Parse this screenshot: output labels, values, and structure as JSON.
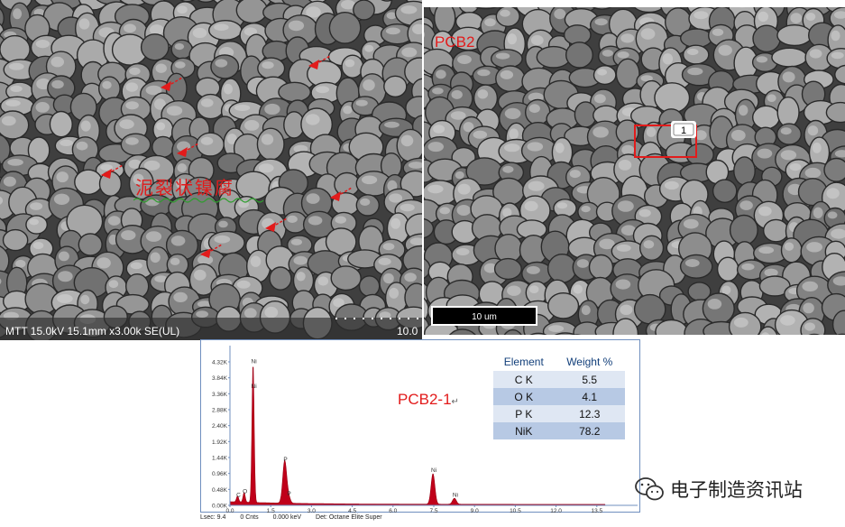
{
  "left_image": {
    "info_bar": "MTT 15.0kV 15.1mm x3.00k SE(UL)",
    "scale_value": "10.0",
    "annotation": "泥裂状镍腐"
  },
  "right_image": {
    "title": "PCB2",
    "spot_label": "1",
    "scale_bar_label": "10 um"
  },
  "spectrum": {
    "sample_label": "PCB2-1",
    "sample_label_mark": "↵",
    "y_ticks": [
      "4.32K",
      "3.84K",
      "3.36K",
      "2.88K",
      "2.40K",
      "1.92K",
      "1.44K",
      "0.96K",
      "0.48K",
      "0.00K"
    ],
    "x_ticks": [
      "0.0",
      "1.5",
      "3.0",
      "4.5",
      "6.0",
      "7.5",
      "9.0",
      "10.5",
      "12.0",
      "13.5"
    ],
    "peaks": [
      {
        "label": "C",
        "kev": 0.28,
        "counts": 0.18
      },
      {
        "label": "O",
        "kev": 0.52,
        "counts": 0.29
      },
      {
        "label": "Ni",
        "kev": 0.85,
        "counts": 4.2
      },
      {
        "label": "Ni",
        "kev": 0.85,
        "counts": 3.45
      },
      {
        "label": "P",
        "kev": 2.01,
        "counts": 1.25
      },
      {
        "label": "P",
        "kev": 2.14,
        "counts": 0.22
      },
      {
        "label": "Ni",
        "kev": 7.47,
        "counts": 0.92
      },
      {
        "label": "Ni",
        "kev": 8.26,
        "counts": 0.18
      }
    ],
    "footer": {
      "lsec": "Lsec: 9.4",
      "cnts": "0 Cnts",
      "kev": "0.000 keV",
      "det": "Det: Octane Elite Super"
    }
  },
  "composition": {
    "headers": [
      "Element",
      "Weight %"
    ],
    "rows": [
      {
        "element": "C K",
        "weight": "5.5"
      },
      {
        "element": "O K",
        "weight": "4.1"
      },
      {
        "element": "P K",
        "weight": "12.3"
      },
      {
        "element": "NiK",
        "weight": "78.2"
      }
    ]
  },
  "watermark": {
    "text": "电子制造资讯站",
    "icon": "wechat-icon"
  },
  "colors": {
    "annotation_red": "#e21b1b",
    "spectrum_fill": "#c0001a",
    "axis_blue": "#6f8fbf"
  }
}
